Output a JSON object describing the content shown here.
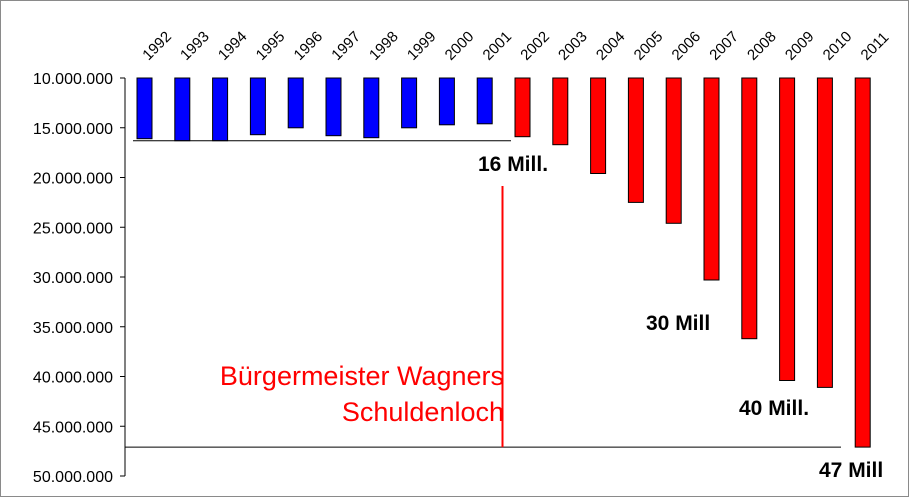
{
  "chart_data": {
    "type": "bar",
    "title": [
      "Bürgermeister Wagners",
      "Schuldenloch"
    ],
    "xlabel": "",
    "ylabel": "",
    "y_inverted": true,
    "ylim": [
      10000000,
      50000000
    ],
    "yticks": [
      "10.000.000",
      "15.000.000",
      "20.000.000",
      "25.000.000",
      "30.000.000",
      "35.000.000",
      "40.000.000",
      "45.000.000",
      "50.000.000"
    ],
    "ytick_values": [
      10000000,
      15000000,
      20000000,
      25000000,
      30000000,
      35000000,
      40000000,
      45000000,
      50000000
    ],
    "categories": [
      "1992",
      "1993",
      "1994",
      "1995",
      "1996",
      "1997",
      "1998",
      "1999",
      "2000",
      "2001",
      "2002",
      "2003",
      "2004",
      "2005",
      "2006",
      "2007",
      "2008",
      "2009",
      "2010",
      "2011"
    ],
    "values": [
      16100000,
      16300000,
      16300000,
      15700000,
      15000000,
      15800000,
      16000000,
      15000000,
      14700000,
      14600000,
      15900000,
      16700000,
      19600000,
      22500000,
      24600000,
      30300000,
      36200000,
      40400000,
      41100000,
      47100000
    ],
    "colors": [
      "#0000ff",
      "#0000ff",
      "#0000ff",
      "#0000ff",
      "#0000ff",
      "#0000ff",
      "#0000ff",
      "#0000ff",
      "#0000ff",
      "#0000ff",
      "#ff0000",
      "#ff0000",
      "#ff0000",
      "#ff0000",
      "#ff0000",
      "#ff0000",
      "#ff0000",
      "#ff0000",
      "#ff0000",
      "#ff0000"
    ],
    "reference_lines": [
      16300000,
      47100000
    ],
    "divider_after_category": "2001",
    "divider_color": "#ff0000",
    "annotations": [
      "16 Mill.",
      "30 Mill",
      "40 Mill.",
      "47 Mill"
    ],
    "grid": false,
    "legend": "none"
  }
}
